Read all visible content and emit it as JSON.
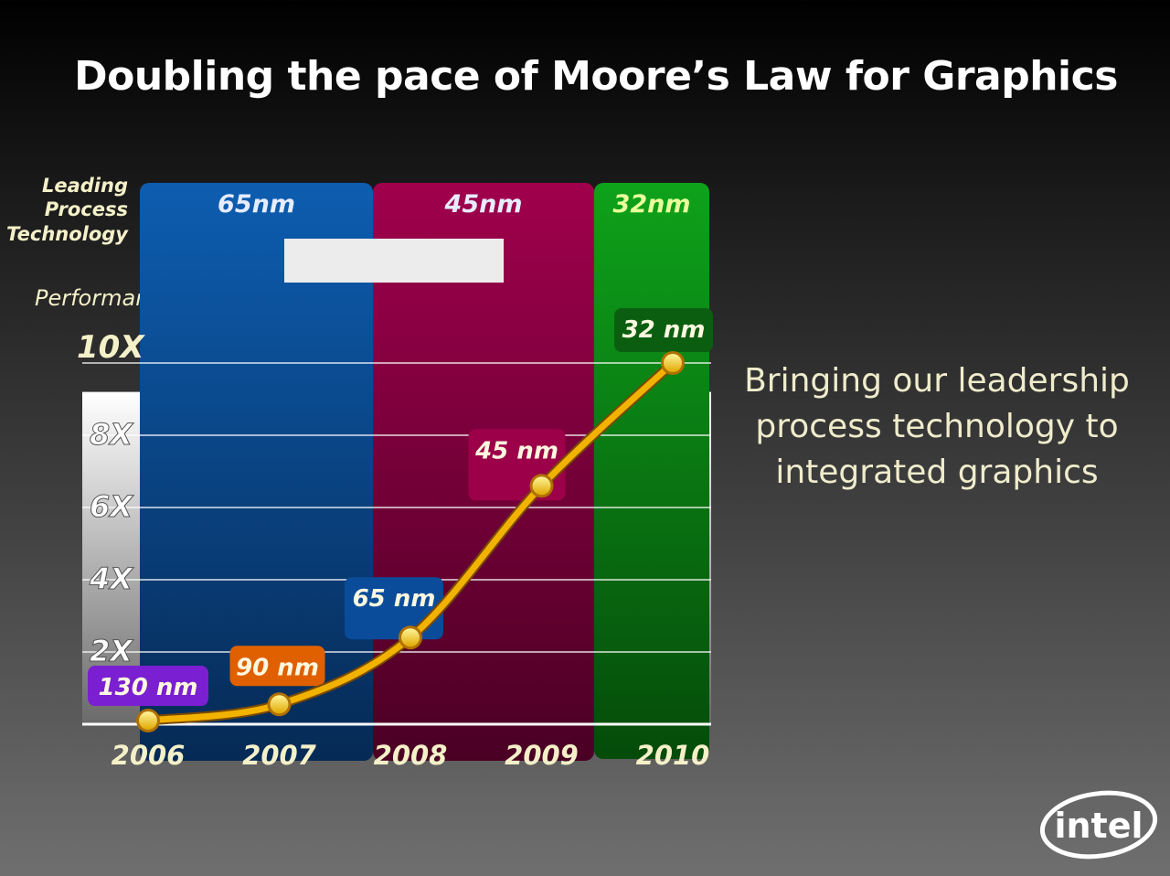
{
  "title": "Doubling the pace of Moore’s Law for Graphics",
  "y_axis_title": "Performance",
  "process_label_lines": [
    "Leading",
    "Process",
    "Technology"
  ],
  "tagline_lines": [
    "Bringing our leadership",
    "process technology to",
    "integrated graphics"
  ],
  "logo_text": "intel",
  "colors": {
    "band_65nm": "#0b4f9a",
    "band_45nm": "#8c0040",
    "band_32nm": "#0a8a14",
    "curve": "#f2b200",
    "point": "#ffe11a"
  },
  "chart_data": {
    "type": "line",
    "title": "Doubling the pace of Moore’s Law for Graphics",
    "ylabel": "Performance",
    "xlabel": "",
    "x": [
      "2006",
      "2007",
      "2008",
      "2009",
      "2010"
    ],
    "series": [
      {
        "values": [
          0.1,
          0.55,
          2.4,
          6.6,
          10.0
        ],
        "point_labels": [
          "130 nm",
          "90 nm",
          "65 nm",
          "45 nm",
          "32 nm"
        ],
        "label_colors": [
          "#7a1fd1",
          "#e06000",
          "#0a4c9a",
          "#9b0048",
          "#0b5e10"
        ]
      }
    ],
    "y_ticks": [
      "2X",
      "4X",
      "6X",
      "8X",
      "10X"
    ],
    "ylim": [
      0,
      10
    ],
    "process_bands": [
      {
        "label": "65nm",
        "from": "2006",
        "to": "2007"
      },
      {
        "label": "45nm",
        "from": "2008",
        "to": "2009"
      },
      {
        "label": "32nm",
        "from": "2010",
        "to": "2010"
      }
    ],
    "grid": true
  }
}
